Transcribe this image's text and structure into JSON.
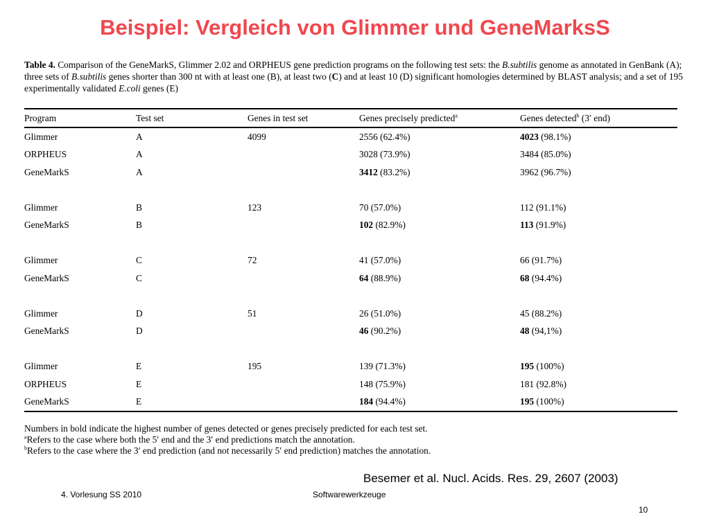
{
  "slide": {
    "title": "Beispiel: Vergleich von Glimmer und GeneMarksS"
  },
  "caption": {
    "label": "Table 4.",
    "part1": " Comparison of the GeneMarkS, Glimmer 2.02 and ORPHEUS gene prediction programs on the following test sets: the ",
    "species1": "B.subtilis",
    "part2": " genome as annotated in GenBank (A); three sets of ",
    "species2": "B.subtilis",
    "part3": " genes shorter than 300 nt with at least one (B), at least two (",
    "c_bold": "C",
    "part4": ")  and at least 10 (D) significant homologies determined by BLAST analysis; and a set of 195 experimentally validated ",
    "species3": "E.coli",
    "part5": " genes (E)"
  },
  "table": {
    "headers": {
      "program": "Program",
      "test_set": "Test set",
      "genes_in_set": "Genes in test set",
      "precise": "Genes precisely predicted",
      "precise_sup": "a",
      "detected": "Genes detected",
      "detected_sup": "b",
      "detected_tail": " (3′ end)"
    },
    "rows": [
      {
        "program": "Glimmer",
        "set": "A",
        "genes": "4099",
        "precise_n": "2556",
        "precise_p": " (62.4%)",
        "precise_bold": false,
        "det_n": "4023",
        "det_p": " (98.1%)",
        "det_bold": true
      },
      {
        "program": "ORPHEUS",
        "set": "A",
        "genes": "",
        "precise_n": "3028",
        "precise_p": " (73.9%)",
        "precise_bold": false,
        "det_n": "3484",
        "det_p": " (85.0%)",
        "det_bold": false
      },
      {
        "program": "GeneMarkS",
        "set": "A",
        "genes": "",
        "precise_n": "3412",
        "precise_p": " (83.2%)",
        "precise_bold": true,
        "det_n": "3962",
        "det_p": " (96.7%)",
        "det_bold": false
      },
      {
        "program": "Glimmer",
        "set": "B",
        "genes": "123",
        "precise_n": "70",
        "precise_p": " (57.0%)",
        "precise_bold": false,
        "det_n": "112",
        "det_p": " (91.1%)",
        "det_bold": false
      },
      {
        "program": "GeneMarkS",
        "set": "B",
        "genes": "",
        "precise_n": "102",
        "precise_p": " (82.9%)",
        "precise_bold": true,
        "det_n": "113",
        "det_p": " (91.9%)",
        "det_bold": true
      },
      {
        "program": "Glimmer",
        "set": "C",
        "genes": "72",
        "precise_n": "41",
        "precise_p": " (57.0%)",
        "precise_bold": false,
        "det_n": "66",
        "det_p": " (91.7%)",
        "det_bold": false
      },
      {
        "program": "GeneMarkS",
        "set": "C",
        "genes": "",
        "precise_n": "64",
        "precise_p": " (88.9%)",
        "precise_bold": true,
        "det_n": "68",
        "det_p": " (94.4%)",
        "det_bold": true
      },
      {
        "program": "Glimmer",
        "set": "D",
        "genes": "51",
        "precise_n": "26",
        "precise_p": " (51.0%)",
        "precise_bold": false,
        "det_n": "45",
        "det_p": " (88.2%)",
        "det_bold": false
      },
      {
        "program": "GeneMarkS",
        "set": "D",
        "genes": "",
        "precise_n": "46",
        "precise_p": " (90.2%)",
        "precise_bold": true,
        "det_n": "48",
        "det_p": " (94,1%)",
        "det_bold": true
      },
      {
        "program": "Glimmer",
        "set": "E",
        "genes": "195",
        "precise_n": "139",
        "precise_p": " (71.3%)",
        "precise_bold": false,
        "det_n": "195",
        "det_p": " (100%)",
        "det_bold": true
      },
      {
        "program": "ORPHEUS",
        "set": "E",
        "genes": "",
        "precise_n": "148",
        "precise_p": " (75.9%)",
        "precise_bold": false,
        "det_n": "181",
        "det_p": " (92.8%)",
        "det_bold": false
      },
      {
        "program": "GeneMarkS",
        "set": "E",
        "genes": "",
        "precise_n": "184",
        "precise_p": " (94.4%)",
        "precise_bold": true,
        "det_n": "195",
        "det_p": " (100%)",
        "det_bold": true
      }
    ]
  },
  "notes": {
    "line1": "Numbers in bold indicate the highest number of genes detected or genes precisely predicted for each test set.",
    "sup_a": "a",
    "line2": "Refers to the case where both the 5′ end and the 3′ end predictions match the annotation.",
    "sup_b": "b",
    "line3": "Refers to the case where the 3′ end prediction (and not necessarily 5′ end prediction) matches the annotation."
  },
  "citation": "Besemer et al. Nucl. Acids. Res. 29, 2607 (2003)",
  "footer": {
    "left": "4. Vorlesung SS 2010",
    "center": "Softwarewerkzeuge",
    "page": "10"
  }
}
